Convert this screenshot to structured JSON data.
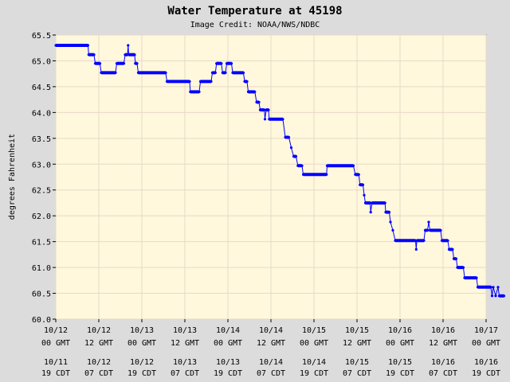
{
  "chart_data": {
    "type": "line",
    "title": "Water Temperature at 45198",
    "subtitle": "Image Credit: NOAA/NWS/NDBC",
    "ylabel": "degrees Fahrenheit",
    "xlabel": "",
    "ylim": [
      60.0,
      65.5
    ],
    "xlim": [
      "10/12 00 GMT",
      "10/17 00 GMT"
    ],
    "y_ticks": [
      "60.0",
      "60.5",
      "61.0",
      "61.5",
      "62.0",
      "62.5",
      "63.0",
      "63.5",
      "64.0",
      "64.5",
      "65.0",
      "65.5"
    ],
    "x_ticks": [
      {
        "date": "10/12",
        "time": "00 GMT",
        "local_date": "10/11",
        "local_time": "19 CDT"
      },
      {
        "date": "10/12",
        "time": "12 GMT",
        "local_date": "10/12",
        "local_time": "07 CDT"
      },
      {
        "date": "10/13",
        "time": "00 GMT",
        "local_date": "10/12",
        "local_time": "19 CDT"
      },
      {
        "date": "10/13",
        "time": "12 GMT",
        "local_date": "10/13",
        "local_time": "07 CDT"
      },
      {
        "date": "10/14",
        "time": "00 GMT",
        "local_date": "10/13",
        "local_time": "19 CDT"
      },
      {
        "date": "10/14",
        "time": "12 GMT",
        "local_date": "10/14",
        "local_time": "07 CDT"
      },
      {
        "date": "10/15",
        "time": "00 GMT",
        "local_date": "10/14",
        "local_time": "19 CDT"
      },
      {
        "date": "10/15",
        "time": "12 GMT",
        "local_date": "10/15",
        "local_time": "07 CDT"
      },
      {
        "date": "10/16",
        "time": "00 GMT",
        "local_date": "10/15",
        "local_time": "19 CDT"
      },
      {
        "date": "10/16",
        "time": "12 GMT",
        "local_date": "10/16",
        "local_time": "07 CDT"
      },
      {
        "date": "10/17",
        "time": "00 GMT",
        "local_date": "10/16",
        "local_time": "19 CDT"
      }
    ],
    "grid": true,
    "series": [
      {
        "color": "#0000ff",
        "points": [
          [
            "10/12 00:00",
            65.3
          ],
          [
            "10/12 09:00",
            65.3
          ],
          [
            "10/12 09:10",
            65.12
          ],
          [
            "10/12 10:40",
            65.12
          ],
          [
            "10/12 11:00",
            64.95
          ],
          [
            "10/12 12:20",
            64.95
          ],
          [
            "10/12 12:40",
            64.77
          ],
          [
            "10/12 16:40",
            64.77
          ],
          [
            "10/12 17:00",
            64.95
          ],
          [
            "10/12 19:00",
            64.95
          ],
          [
            "10/12 19:20",
            65.12
          ],
          [
            "10/12 20:00",
            65.12
          ],
          [
            "10/12 20:10",
            65.3
          ],
          [
            "10/12 20:20",
            65.12
          ],
          [
            "10/12 22:00",
            65.12
          ],
          [
            "10/12 22:10",
            64.95
          ],
          [
            "10/12 22:40",
            64.95
          ],
          [
            "10/12 23:00",
            64.77
          ],
          [
            "10/13 06:40",
            64.77
          ],
          [
            "10/13 07:00",
            64.6
          ],
          [
            "10/13 13:20",
            64.6
          ],
          [
            "10/13 13:30",
            64.4
          ],
          [
            "10/13 16:00",
            64.4
          ],
          [
            "10/13 16:20",
            64.6
          ],
          [
            "10/13 19:20",
            64.6
          ],
          [
            "10/13 19:40",
            64.77
          ],
          [
            "10/13 20:30",
            64.77
          ],
          [
            "10/13 20:50",
            64.95
          ],
          [
            "10/13 22:10",
            64.95
          ],
          [
            "10/13 22:30",
            64.77
          ],
          [
            "10/13 23:20",
            64.77
          ],
          [
            "10/13 23:40",
            64.95
          ],
          [
            "10/14 01:00",
            64.95
          ],
          [
            "10/14 01:20",
            64.77
          ],
          [
            "10/14 04:20",
            64.77
          ],
          [
            "10/14 04:40",
            64.6
          ],
          [
            "10/14 05:20",
            64.6
          ],
          [
            "10/14 05:40",
            64.4
          ],
          [
            "10/14 07:30",
            64.4
          ],
          [
            "10/14 08:00",
            64.2
          ],
          [
            "10/14 08:40",
            64.2
          ],
          [
            "10/14 09:00",
            64.05
          ],
          [
            "10/14 10:10",
            64.05
          ],
          [
            "10/14 10:20",
            63.87
          ],
          [
            "10/14 10:40",
            64.05
          ],
          [
            "10/14 11:20",
            64.05
          ],
          [
            "10/14 11:30",
            63.87
          ],
          [
            "10/14 15:20",
            63.87
          ],
          [
            "10/14 16:00",
            63.52
          ],
          [
            "10/14 17:00",
            63.52
          ],
          [
            "10/14 17:40",
            63.32
          ],
          [
            "10/14 18:20",
            63.15
          ],
          [
            "10/14 19:00",
            63.15
          ],
          [
            "10/14 19:30",
            62.97
          ],
          [
            "10/14 20:40",
            62.97
          ],
          [
            "10/14 21:00",
            62.8
          ],
          [
            "10/15 03:30",
            62.8
          ],
          [
            "10/15 03:40",
            62.97
          ],
          [
            "10/15 11:00",
            62.97
          ],
          [
            "10/15 11:30",
            62.8
          ],
          [
            "10/15 12:30",
            62.8
          ],
          [
            "10/15 12:50",
            62.6
          ],
          [
            "10/15 13:40",
            62.6
          ],
          [
            "10/15 14:00",
            62.4
          ],
          [
            "10/15 14:20",
            62.25
          ],
          [
            "10/15 15:40",
            62.25
          ],
          [
            "10/15 15:50",
            62.07
          ],
          [
            "10/15 16:10",
            62.25
          ],
          [
            "10/15 19:50",
            62.25
          ],
          [
            "10/15 20:00",
            62.07
          ],
          [
            "10/15 21:00",
            62.07
          ],
          [
            "10/15 21:20",
            61.88
          ],
          [
            "10/15 22:00",
            61.72
          ],
          [
            "10/15 22:40",
            61.52
          ],
          [
            "10/16 04:20",
            61.52
          ],
          [
            "10/16 04:30",
            61.35
          ],
          [
            "10/16 04:40",
            61.52
          ],
          [
            "10/16 06:40",
            61.52
          ],
          [
            "10/16 07:00",
            61.72
          ],
          [
            "10/16 07:40",
            61.72
          ],
          [
            "10/16 08:00",
            61.88
          ],
          [
            "10/16 08:20",
            61.72
          ],
          [
            "10/16 11:20",
            61.72
          ],
          [
            "10/16 11:40",
            61.52
          ],
          [
            "10/16 13:20",
            61.52
          ],
          [
            "10/16 13:40",
            61.35
          ],
          [
            "10/16 14:40",
            61.35
          ],
          [
            "10/16 15:00",
            61.17
          ],
          [
            "10/16 15:40",
            61.17
          ],
          [
            "10/16 16:00",
            61.0
          ],
          [
            "10/16 17:40",
            61.0
          ],
          [
            "10/16 18:00",
            60.8
          ],
          [
            "10/16 21:20",
            60.8
          ],
          [
            "10/16 21:40",
            60.62
          ],
          [
            "10/17 01:20",
            60.62
          ],
          [
            "10/17 01:40",
            60.45
          ],
          [
            "10/17 02:00",
            60.62
          ],
          [
            "10/17 02:40",
            60.45
          ],
          [
            "10/17 03:20",
            60.62
          ],
          [
            "10/17 03:40",
            60.45
          ],
          [
            "10/17 05:00",
            60.45
          ]
        ]
      }
    ]
  }
}
